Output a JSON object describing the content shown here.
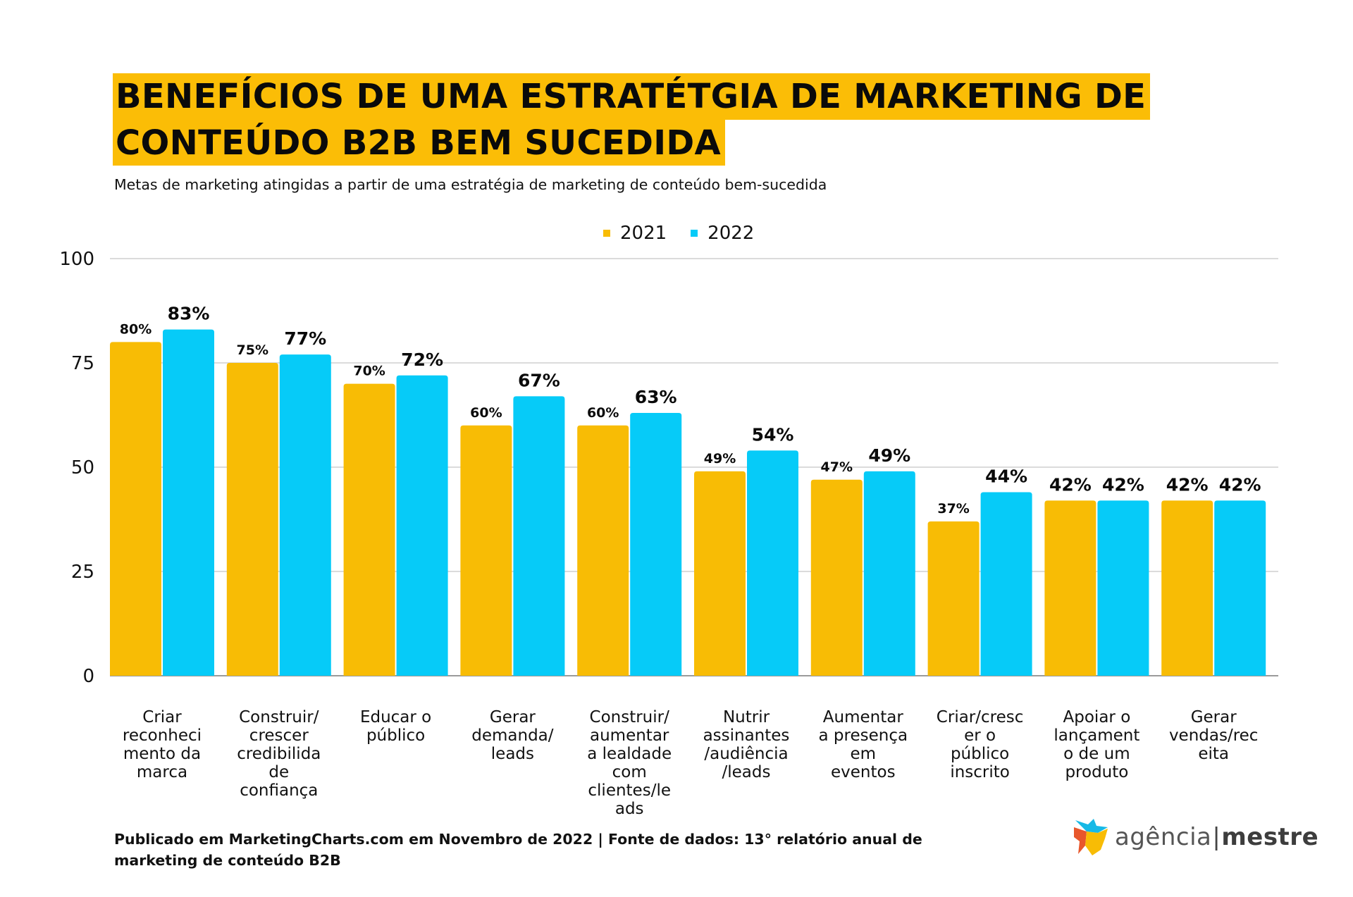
{
  "header": {
    "title_line1": "BENEFÍCIOS DE UMA ESTRATÉTGIA DE MARKETING DE",
    "title_line2": "CONTEÚDO B2B BEM SUCEDIDA",
    "subtitle": "Metas de marketing atingidas a partir de uma estratégia de marketing de conteúdo bem-sucedida"
  },
  "colors": {
    "title_highlight": "#FBBD06",
    "series_2021": "#F8BC05",
    "series_2022": "#06CBF8",
    "gridline": "#cfcfcf",
    "axis": "#7a7a7a"
  },
  "chart_data": {
    "type": "bar",
    "title": "BENEFÍCIOS DE UMA ESTRATÉTGIA DE MARKETING DE CONTEÚDO B2B BEM SUCEDIDA",
    "subtitle": "Metas de marketing atingidas a partir de uma estratégia de marketing de conteúdo bem-sucedida",
    "xlabel": "",
    "ylabel": "",
    "ylim": [
      0,
      100
    ],
    "yticks": [
      0,
      25,
      50,
      75,
      100
    ],
    "grid": true,
    "legend_position": "top-center",
    "categories": [
      "Criar reconhecimento da marca",
      "Construir/crescer credibilidade de confiança",
      "Educar o público",
      "Gerar demanda/leads",
      "Construir/aumentar a lealdade com clientes/leads",
      "Nutrir assinantes/audiência/leads",
      "Aumentar a presença em eventos",
      "Criar/crescer o público inscrito",
      "Apoiar o lançamento de um produto",
      "Gerar vendas/receita"
    ],
    "category_label_lines": [
      [
        "Criar",
        "reconheci",
        "mento da",
        "marca"
      ],
      [
        "Construir/",
        "crescer",
        "credibilida",
        "de",
        "confiança"
      ],
      [
        "Educar o",
        "público"
      ],
      [
        "Gerar",
        "demanda/",
        "leads"
      ],
      [
        "Construir/",
        "aumentar",
        "a lealdade",
        "com",
        "clientes/le",
        "ads"
      ],
      [
        "Nutrir",
        "assinantes",
        "/audiência",
        "/leads"
      ],
      [
        "Aumentar",
        "a presença",
        "em",
        "eventos"
      ],
      [
        "Criar/cresc",
        "er o",
        "público",
        "inscrito"
      ],
      [
        "Apoiar o",
        "lançament",
        "o de um",
        "produto"
      ],
      [
        "Gerar",
        "vendas/rec",
        "eita"
      ]
    ],
    "series": [
      {
        "name": "2021",
        "values": [
          80,
          75,
          70,
          60,
          60,
          49,
          47,
          37,
          42,
          42
        ],
        "labels": [
          "80%",
          "75%",
          "70%",
          "60%",
          "60%",
          "49%",
          "47%",
          "37%",
          "42%",
          "42%"
        ],
        "label_large": [
          false,
          false,
          false,
          false,
          false,
          false,
          false,
          false,
          true,
          true
        ]
      },
      {
        "name": "2022",
        "values": [
          83,
          77,
          72,
          67,
          63,
          54,
          49,
          44,
          42,
          42
        ],
        "labels": [
          "83%",
          "77%",
          "72%",
          "67%",
          "63%",
          "54%",
          "49%",
          "44%",
          "42%",
          "42%"
        ],
        "label_large": [
          true,
          true,
          true,
          true,
          true,
          true,
          true,
          true,
          true,
          true
        ]
      }
    ]
  },
  "legend": {
    "items": [
      {
        "label": "2021"
      },
      {
        "label": "2022"
      }
    ]
  },
  "footer": {
    "source_line1": "Publicado em MarketingCharts.com em Novembro de 2022 | Fonte de dados: 13° relatório anual de",
    "source_line2": "marketing de conteúdo B2B"
  },
  "logo": {
    "name_light": "agência",
    "separator": "|",
    "name_bold": "mestre"
  }
}
